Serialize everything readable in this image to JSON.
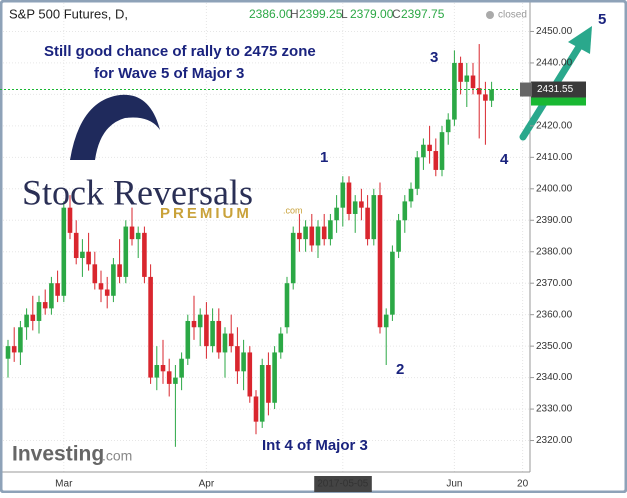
{
  "chart_data": {
    "type": "candlestick",
    "header": {
      "symbol": "S&P 500 Futures, D,",
      "open": "2386.00",
      "high_label": "H",
      "high": "2399.25",
      "low_label": "L",
      "low": "2379.00",
      "close_label": "C",
      "close": "2397.75",
      "status": "closed"
    },
    "annotations": [
      "Still good chance of rally to 2475  zone",
      "for Wave 5 of Major 3",
      "1",
      "2",
      "3",
      "4",
      "5",
      "Int 4 of Major 3"
    ],
    "logo": {
      "line1": "Stock Reversals",
      "line2": "PREMIUM",
      "suffix": ".com"
    },
    "watermark": {
      "name": "Investing",
      "suffix": ".com"
    },
    "categories": [
      null,
      null,
      null,
      null,
      null,
      null,
      null,
      null,
      null,
      "Mar",
      null,
      null,
      null,
      null,
      null,
      null,
      null,
      null,
      null,
      null,
      null,
      null,
      null,
      null,
      null,
      null,
      null,
      null,
      null,
      null,
      null,
      null,
      "Apr",
      null,
      null,
      null,
      null,
      null,
      null,
      null,
      null,
      null,
      null,
      null,
      null,
      null,
      null,
      null,
      null,
      null,
      null,
      null,
      null,
      null,
      "2017-05-05",
      null,
      null,
      null,
      null,
      null,
      null,
      null,
      null,
      null,
      null,
      null,
      null,
      null,
      null,
      null,
      null,
      null,
      "Jun",
      null,
      null,
      null,
      null,
      null,
      null,
      null,
      null,
      null,
      null,
      "20"
    ],
    "open": [
      2346,
      2350,
      2348,
      2356,
      2360,
      2358,
      2364,
      2362,
      2370,
      2366,
      2394,
      2386,
      2378,
      2380,
      2376,
      2370,
      2368,
      2366,
      2376,
      2372,
      2388,
      2384,
      2386,
      2372,
      2340,
      2344,
      2342,
      2338,
      2340,
      2346,
      2358,
      2356,
      2360,
      2350,
      2358,
      2348,
      2354,
      2350,
      2342,
      2348,
      2334,
      2326,
      2344,
      2332,
      2348,
      2356,
      2370,
      2386,
      2384,
      2388,
      2382,
      2388,
      2384,
      2390,
      2394,
      2402,
      2392,
      2396,
      2394,
      2384,
      2398,
      2356,
      2360,
      2380,
      2390,
      2396,
      2400,
      2410,
      2414,
      2412,
      2406,
      2418,
      2422,
      2440,
      2434,
      2436,
      2432,
      2430,
      2428,
      null,
      null,
      null,
      null,
      null
    ],
    "high": [
      2352,
      2356,
      2358,
      2362,
      2366,
      2366,
      2368,
      2372,
      2374,
      2396,
      2398,
      2390,
      2384,
      2386,
      2380,
      2374,
      2372,
      2378,
      2384,
      2390,
      2394,
      2388,
      2388,
      2376,
      2350,
      2352,
      2346,
      2344,
      2348,
      2360,
      2366,
      2362,
      2364,
      2362,
      2362,
      2356,
      2360,
      2356,
      2352,
      2350,
      2336,
      2346,
      2348,
      2350,
      2356,
      2372,
      2388,
      2392,
      2390,
      2392,
      2390,
      2392,
      2392,
      2398,
      2404,
      2404,
      2398,
      2400,
      2398,
      2400,
      2402,
      2362,
      2382,
      2392,
      2398,
      2402,
      2412,
      2416,
      2420,
      2416,
      2420,
      2424,
      2444,
      2442,
      2440,
      2440,
      2446,
      2434,
      2434,
      null,
      null,
      null,
      null,
      null
    ],
    "low": [
      2340,
      2345,
      2344,
      2352,
      2355,
      2354,
      2360,
      2360,
      2364,
      2364,
      2384,
      2376,
      2372,
      2374,
      2368,
      2364,
      2362,
      2364,
      2370,
      2370,
      2382,
      2378,
      2370,
      2338,
      2336,
      2338,
      2334,
      2318,
      2336,
      2344,
      2352,
      2350,
      2346,
      2348,
      2346,
      2340,
      2348,
      2338,
      2336,
      2332,
      2322,
      2324,
      2328,
      2330,
      2346,
      2354,
      2368,
      2380,
      2380,
      2380,
      2378,
      2382,
      2382,
      2386,
      2388,
      2390,
      2386,
      2390,
      2382,
      2382,
      2354,
      2344,
      2358,
      2378,
      2386,
      2394,
      2398,
      2406,
      2408,
      2404,
      2404,
      2414,
      2420,
      2430,
      2426,
      2430,
      2416,
      2414,
      2426,
      null,
      null,
      null,
      null,
      null
    ],
    "close": [
      2350,
      2348,
      2356,
      2360,
      2358,
      2364,
      2362,
      2370,
      2366,
      2394,
      2386,
      2378,
      2380,
      2376,
      2370,
      2368,
      2366,
      2376,
      2372,
      2388,
      2384,
      2386,
      2372,
      2340,
      2344,
      2342,
      2338,
      2340,
      2346,
      2358,
      2356,
      2360,
      2350,
      2358,
      2348,
      2354,
      2350,
      2342,
      2348,
      2334,
      2326,
      2344,
      2332,
      2348,
      2354,
      2370,
      2386,
      2384,
      2388,
      2382,
      2388,
      2384,
      2390,
      2394,
      2402,
      2392,
      2396,
      2394,
      2384,
      2398,
      2356,
      2360,
      2380,
      2390,
      2396,
      2400,
      2410,
      2414,
      2412,
      2406,
      2418,
      2422,
      2440,
      2434,
      2436,
      2432,
      2430,
      2428,
      2431.55,
      null,
      null,
      null,
      null,
      null
    ],
    "up_color": "#2ba845",
    "down_color": "#d9262e",
    "last_color": "#19b832",
    "ylim": [
      2310,
      2460
    ],
    "yticks": [
      {
        "value": 2320,
        "label": "2320.00"
      },
      {
        "value": 2330,
        "label": "2330.00"
      },
      {
        "value": 2340,
        "label": "2340.00"
      },
      {
        "value": 2350,
        "label": "2350.00"
      },
      {
        "value": 2360,
        "label": "2360.00"
      },
      {
        "value": 2370,
        "label": "2370.00"
      },
      {
        "value": 2380,
        "label": "2380.00"
      },
      {
        "value": 2390,
        "label": "2390.00"
      },
      {
        "value": 2400,
        "label": "2400.00"
      },
      {
        "value": 2410,
        "label": "2410.00"
      },
      {
        "value": 2420,
        "label": "2420.00"
      },
      {
        "value": 2430,
        "label": "2430.00"
      },
      {
        "value": 2440,
        "label": "2440.00"
      },
      {
        "value": 2450,
        "label": "2450.00"
      }
    ],
    "grid": true
  }
}
